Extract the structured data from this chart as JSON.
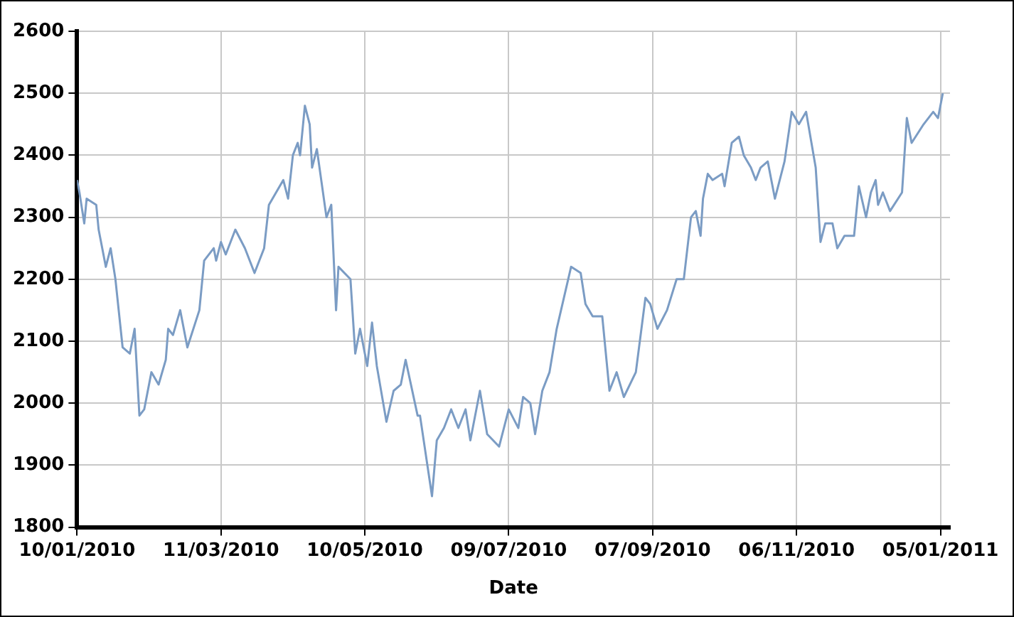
{
  "chart_data": {
    "type": "line",
    "xlabel": "Date",
    "grid": true,
    "legend": false,
    "marker": "none",
    "line_style": "solid",
    "xlim": [
      "2010-01-10",
      "2011-01-09"
    ],
    "xticks": [
      {
        "value": "2010-01-10",
        "label": "10/01/2010"
      },
      {
        "value": "2010-03-11",
        "label": "11/03/2010"
      },
      {
        "value": "2010-05-10",
        "label": "10/05/2010"
      },
      {
        "value": "2010-07-09",
        "label": "09/07/2010"
      },
      {
        "value": "2010-09-07",
        "label": "07/09/2010"
      },
      {
        "value": "2010-11-06",
        "label": "06/11/2010"
      },
      {
        "value": "2011-01-05",
        "label": "05/01/2011"
      }
    ],
    "ylim": [
      1800,
      2600
    ],
    "yticks": [
      1800,
      1900,
      2000,
      2100,
      2200,
      2300,
      2400,
      2500,
      2600
    ],
    "x": [
      "2010-01-10",
      "2010-01-11",
      "2010-01-13",
      "2010-01-14",
      "2010-01-18",
      "2010-01-19",
      "2010-01-22",
      "2010-01-24",
      "2010-01-26",
      "2010-01-29",
      "2010-02-01",
      "2010-02-03",
      "2010-02-05",
      "2010-02-07",
      "2010-02-10",
      "2010-02-13",
      "2010-02-16",
      "2010-02-17",
      "2010-02-19",
      "2010-02-22",
      "2010-02-25",
      "2010-03-02",
      "2010-03-04",
      "2010-03-08",
      "2010-03-09",
      "2010-03-11",
      "2010-03-13",
      "2010-03-17",
      "2010-03-21",
      "2010-03-25",
      "2010-03-29",
      "2010-03-31",
      "2010-04-06",
      "2010-04-08",
      "2010-04-10",
      "2010-04-12",
      "2010-04-13",
      "2010-04-15",
      "2010-04-17",
      "2010-04-18",
      "2010-04-20",
      "2010-04-24",
      "2010-04-26",
      "2010-04-28",
      "2010-04-29",
      "2010-05-04",
      "2010-05-06",
      "2010-05-08",
      "2010-05-11",
      "2010-05-13",
      "2010-05-15",
      "2010-05-19",
      "2010-05-22",
      "2010-05-25",
      "2010-05-27",
      "2010-06-01",
      "2010-06-02",
      "2010-06-07",
      "2010-06-09",
      "2010-06-12",
      "2010-06-15",
      "2010-06-18",
      "2010-06-21",
      "2010-06-23",
      "2010-06-27",
      "2010-06-30",
      "2010-07-05",
      "2010-07-09",
      "2010-07-13",
      "2010-07-15",
      "2010-07-18",
      "2010-07-20",
      "2010-07-23",
      "2010-07-26",
      "2010-07-29",
      "2010-08-04",
      "2010-08-08",
      "2010-08-10",
      "2010-08-13",
      "2010-08-17",
      "2010-08-20",
      "2010-08-23",
      "2010-08-26",
      "2010-08-31",
      "2010-09-04",
      "2010-09-06",
      "2010-09-09",
      "2010-09-13",
      "2010-09-17",
      "2010-09-20",
      "2010-09-23",
      "2010-09-25",
      "2010-09-27",
      "2010-09-28",
      "2010-09-30",
      "2010-10-02",
      "2010-10-06",
      "2010-10-07",
      "2010-10-10",
      "2010-10-13",
      "2010-10-15",
      "2010-10-18",
      "2010-10-20",
      "2010-10-22",
      "2010-10-25",
      "2010-10-28",
      "2010-11-01",
      "2010-11-04",
      "2010-11-07",
      "2010-11-10",
      "2010-11-14",
      "2010-11-16",
      "2010-11-18",
      "2010-11-21",
      "2010-11-23",
      "2010-11-26",
      "2010-11-30",
      "2010-12-02",
      "2010-12-05",
      "2010-12-07",
      "2010-12-09",
      "2010-12-10",
      "2010-12-12",
      "2010-12-15",
      "2010-12-20",
      "2010-12-22",
      "2010-12-24",
      "2010-12-29",
      "2011-01-02",
      "2011-01-04",
      "2011-01-06"
    ],
    "series": [
      {
        "color": "#7b9cc4",
        "values": [
          2360,
          2340,
          2290,
          2330,
          2320,
          2280,
          2220,
          2250,
          2200,
          2090,
          2080,
          2120,
          1980,
          1990,
          2050,
          2030,
          2070,
          2120,
          2110,
          2150,
          2090,
          2150,
          2230,
          2250,
          2230,
          2260,
          2240,
          2280,
          2250,
          2210,
          2250,
          2320,
          2360,
          2330,
          2400,
          2420,
          2400,
          2480,
          2450,
          2380,
          2410,
          2300,
          2320,
          2150,
          2220,
          2200,
          2080,
          2120,
          2060,
          2130,
          2060,
          1970,
          2020,
          2030,
          2070,
          1980,
          1980,
          1850,
          1940,
          1960,
          1990,
          1960,
          1990,
          1940,
          2020,
          1950,
          1930,
          1990,
          1960,
          2010,
          2000,
          1950,
          2020,
          2050,
          2120,
          2220,
          2210,
          2160,
          2140,
          2140,
          2020,
          2050,
          2010,
          2050,
          2170,
          2160,
          2120,
          2150,
          2200,
          2200,
          2300,
          2310,
          2270,
          2330,
          2370,
          2360,
          2370,
          2350,
          2420,
          2430,
          2400,
          2380,
          2360,
          2380,
          2390,
          2330,
          2390,
          2470,
          2450,
          2470,
          2380,
          2260,
          2290,
          2290,
          2250,
          2270,
          2270,
          2350,
          2300,
          2340,
          2360,
          2320,
          2340,
          2310,
          2340,
          2460,
          2420,
          2450,
          2470,
          2460,
          2500
        ]
      }
    ]
  }
}
